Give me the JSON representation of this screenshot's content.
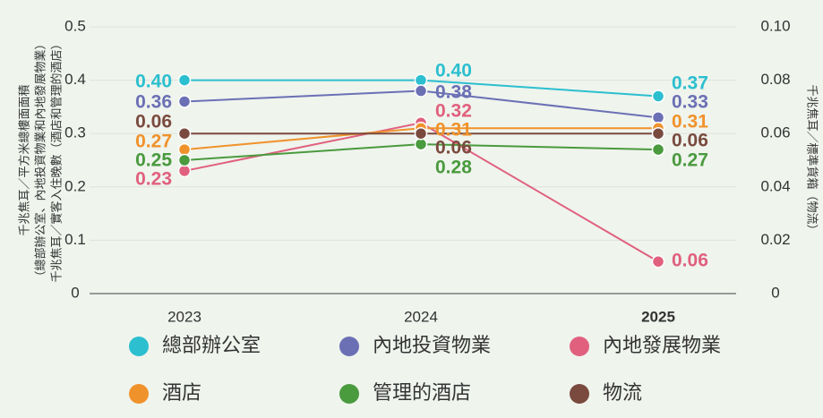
{
  "chart_data": {
    "type": "line",
    "y_label_lines": [
      "千兆焦耳／平方米總樓面面積",
      "（總部辦公室、內地投資物業和內地發展物業）",
      "千兆焦耳／實客入住晚數（酒店和管理的酒店）"
    ],
    "y2_label": "千兆焦耳／標準貨箱（物流）",
    "categories": [
      "2023",
      "2024",
      "2025"
    ],
    "ylim": [
      0,
      0.5
    ],
    "yticks": [
      0,
      0.1,
      0.2,
      0.3,
      0.4,
      0.5
    ],
    "y2lim": [
      0,
      0.1
    ],
    "y2ticks": [
      0,
      0.02,
      0.04,
      0.06,
      0.08,
      {
        "value": 0.1,
        "label": "0.10"
      }
    ],
    "grid": true,
    "series": [
      {
        "name": "總部辦公室",
        "color": "#2bbfcf",
        "values": [
          0.4,
          0.4,
          0.37
        ],
        "value_labels": [
          "0.40",
          "0.40",
          "0.37"
        ]
      },
      {
        "name": "內地投資物業",
        "color": "#6b70b5",
        "values": [
          0.36,
          0.38,
          0.33
        ],
        "value_labels": [
          "0.36",
          "0.38",
          "0.33"
        ]
      },
      {
        "name": "內地發展物業",
        "color": "#e0607e",
        "values": [
          0.23,
          0.32,
          0.06
        ],
        "value_labels": [
          "0.23",
          "0.32",
          "0.06"
        ]
      },
      {
        "name": "酒店",
        "color": "#f0922b",
        "values": [
          0.27,
          0.31,
          0.31
        ],
        "value_labels": [
          "0.27",
          "0.31",
          "0.31"
        ]
      },
      {
        "name": "管理的酒店",
        "color": "#4a9a3e",
        "values": [
          0.25,
          0.28,
          0.27
        ],
        "value_labels": [
          "0.25",
          "0.28",
          "0.27"
        ]
      },
      {
        "name": "物流",
        "color": "#7a4a3e",
        "axis": "y2",
        "values": [
          0.06,
          0.06,
          0.06
        ],
        "value_labels": [
          "0.06",
          "0.06",
          "0.06"
        ]
      }
    ]
  }
}
